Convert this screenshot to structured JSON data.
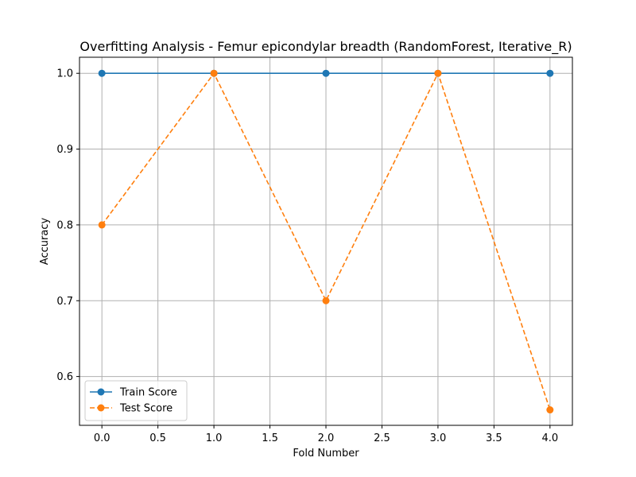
{
  "chart_data": {
    "type": "line",
    "title": "Overfitting Analysis - Femur epicondylar breadth (RandomForest, Iterative_R)",
    "xlabel": "Fold Number",
    "ylabel": "Accuracy",
    "x": [
      0,
      1,
      2,
      3,
      4
    ],
    "xlim": [
      -0.2,
      4.2
    ],
    "ylim": [
      0.5356,
      1.0212
    ],
    "xticks": [
      0.0,
      0.5,
      1.0,
      1.5,
      2.0,
      2.5,
      3.0,
      3.5,
      4.0
    ],
    "xtick_labels": [
      "0.0",
      "0.5",
      "1.0",
      "1.5",
      "2.0",
      "2.5",
      "3.0",
      "3.5",
      "4.0"
    ],
    "yticks": [
      0.6,
      0.7,
      0.8,
      0.9,
      1.0
    ],
    "ytick_labels": [
      "0.6",
      "0.7",
      "0.8",
      "0.9",
      "1.0"
    ],
    "grid": true,
    "legend_position": "lower-left",
    "series": [
      {
        "name": "Train Score",
        "values": [
          1.0,
          1.0,
          1.0,
          1.0,
          1.0
        ],
        "color": "#1f77b4",
        "line_style": "solid",
        "marker": "circle"
      },
      {
        "name": "Test Score",
        "values": [
          0.8,
          1.0,
          0.7,
          1.0,
          0.556
        ],
        "color": "#ff7f0e",
        "line_style": "dashed",
        "marker": "circle"
      }
    ]
  }
}
